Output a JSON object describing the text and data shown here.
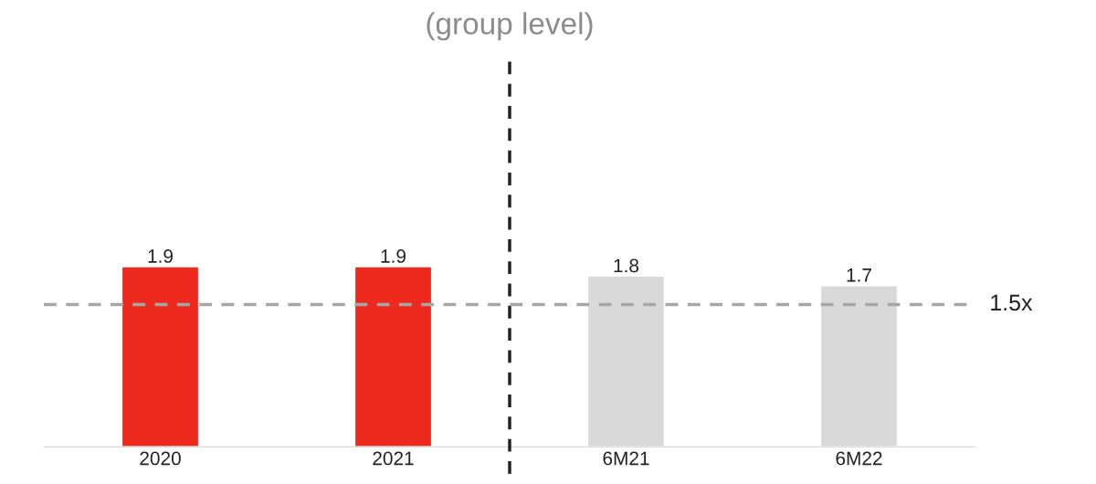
{
  "chart_data": {
    "type": "bar",
    "title": "(group level)",
    "categories": [
      "2020",
      "2021",
      "6M21",
      "6M22"
    ],
    "values": [
      1.9,
      1.9,
      1.8,
      1.7
    ],
    "colors": [
      "#ee2a1e",
      "#ee2a1e",
      "#d9d9d9",
      "#d9d9d9"
    ],
    "data_labels": true,
    "ref_lines": [
      {
        "axis": "y",
        "value": 1.5,
        "label": "1.5x",
        "color": "#a6a6a6",
        "line_style": "dashed"
      }
    ],
    "grid": false
  }
}
